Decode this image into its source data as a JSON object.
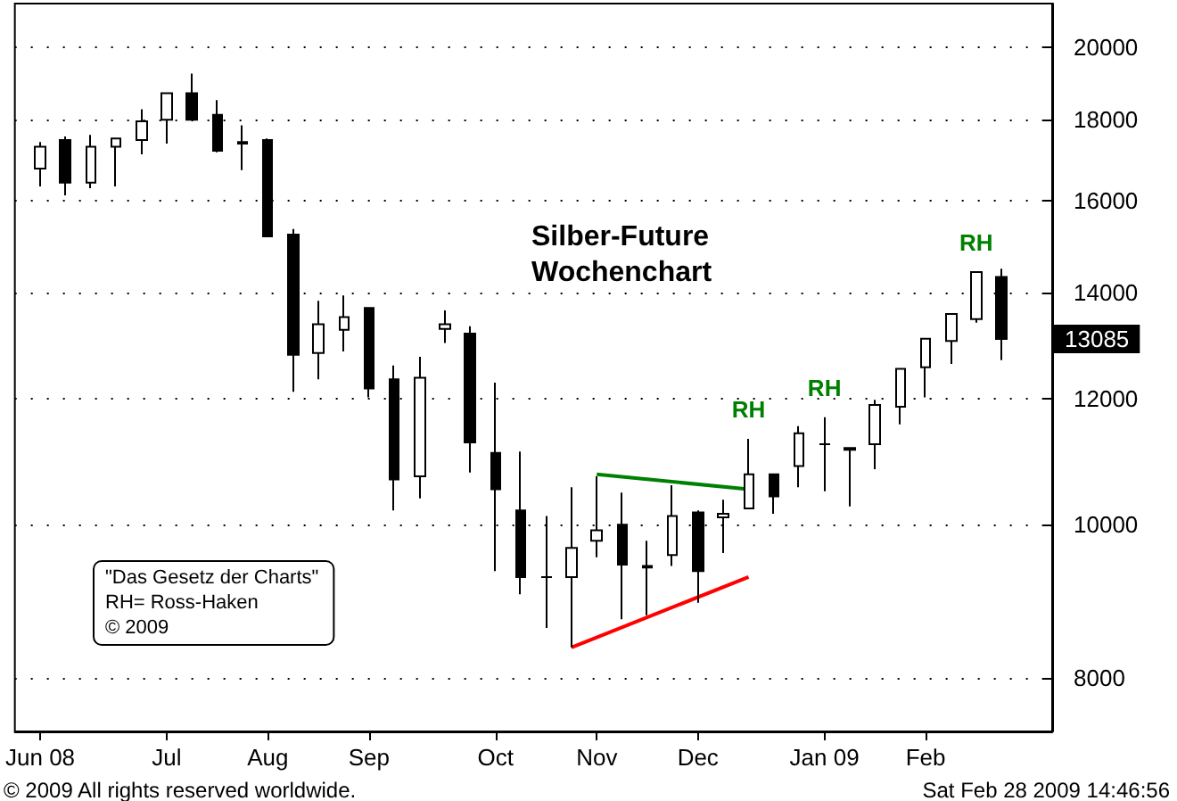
{
  "chart_data": {
    "type": "candlestick",
    "title": "Silber-Future",
    "subtitle": "Wochenchart",
    "color": "#000000",
    "x": [
      "2008-06-02",
      "2008-06-09",
      "2008-06-16",
      "2008-06-23",
      "2008-06-30",
      "2008-07-07",
      "2008-07-14",
      "2008-07-21",
      "2008-07-28",
      "2008-08-04",
      "2008-08-11",
      "2008-08-18",
      "2008-08-25",
      "2008-09-01",
      "2008-09-08",
      "2008-09-15",
      "2008-09-22",
      "2008-09-29",
      "2008-10-06",
      "2008-10-13",
      "2008-10-20",
      "2008-10-27",
      "2008-11-03",
      "2008-11-10",
      "2008-11-17",
      "2008-11-24",
      "2008-12-01",
      "2008-12-08",
      "2008-12-15",
      "2008-12-22",
      "2008-12-29",
      "2009-01-05",
      "2009-01-12",
      "2009-01-19",
      "2009-01-26",
      "2009-02-02",
      "2009-02-09",
      "2009-02-16",
      "2009-02-23"
    ],
    "ohlc": [
      [
        16760,
        17420,
        16330,
        17300
      ],
      [
        17470,
        17560,
        16120,
        16420
      ],
      [
        16420,
        17600,
        16290,
        17300
      ],
      [
        17300,
        17510,
        16330,
        17510
      ],
      [
        17470,
        18270,
        17110,
        17950
      ],
      [
        17990,
        18700,
        17380,
        18700
      ],
      [
        18700,
        19240,
        17990,
        17990
      ],
      [
        18120,
        18510,
        17160,
        17200
      ],
      [
        17380,
        17850,
        16720,
        17420
      ],
      [
        17470,
        17510,
        15190,
        15190
      ],
      [
        15230,
        15350,
        12120,
        12790
      ],
      [
        12820,
        13830,
        12340,
        13370
      ],
      [
        13260,
        13940,
        12850,
        13510
      ],
      [
        13690,
        13690,
        12020,
        12180
      ],
      [
        12340,
        12590,
        10200,
        10670
      ],
      [
        10720,
        12750,
        10380,
        12370
      ],
      [
        13280,
        13640,
        13010,
        13370
      ],
      [
        13190,
        13330,
        10780,
        11260
      ],
      [
        11090,
        12280,
        9340,
        10520
      ],
      [
        10200,
        11110,
        9030,
        9260
      ],
      [
        9260,
        10120,
        8600,
        9260
      ],
      [
        9260,
        10550,
        8360,
        9660
      ],
      [
        9760,
        10720,
        9530,
        9910
      ],
      [
        9990,
        10470,
        8710,
        9430
      ],
      [
        9390,
        9760,
        8760,
        9410
      ],
      [
        9560,
        10580,
        9410,
        10120
      ],
      [
        10170,
        10200,
        8920,
        9340
      ],
      [
        10100,
        10360,
        9590,
        10150
      ],
      [
        10230,
        11320,
        10230,
        10750
      ],
      [
        10750,
        10750,
        10150,
        10410
      ],
      [
        10880,
        11530,
        10550,
        11410
      ],
      [
        11230,
        11680,
        10490,
        11230
      ],
      [
        11170,
        11170,
        10260,
        11140
      ],
      [
        11230,
        11980,
        10830,
        11890
      ],
      [
        11860,
        12530,
        11560,
        12530
      ],
      [
        12560,
        13090,
        12020,
        13090
      ],
      [
        13050,
        13570,
        12620,
        13570
      ],
      [
        13470,
        14420,
        13400,
        14420
      ],
      [
        14320,
        14490,
        12690,
        13085
      ]
    ],
    "series": [
      {
        "type": "line",
        "color": "#008000",
        "x": [
          "2008-11-03",
          "2008-12-15"
        ],
        "values": [
          10750,
          10520
        ]
      },
      {
        "type": "line",
        "color": "#ff0000",
        "x": [
          "2008-10-27",
          "2008-12-15"
        ],
        "values": [
          8360,
          9260
        ]
      }
    ],
    "xlim": [
      "2008-05-26",
      "2009-03-09"
    ],
    "xticks": [
      {
        "value": "2008-06-02",
        "label": "Jun 08"
      },
      {
        "value": "2008-07-07",
        "label": "Jul"
      },
      {
        "value": "2008-08-04",
        "label": "Aug"
      },
      {
        "value": "2008-09-01",
        "label": "Sep"
      },
      {
        "value": "2008-10-06",
        "label": "Oct"
      },
      {
        "value": "2008-11-03",
        "label": "Nov"
      },
      {
        "value": "2008-12-01",
        "label": "Dec"
      },
      {
        "value": "2009-01-05",
        "label": "Jan 09"
      },
      {
        "value": "2009-02-02",
        "label": "Feb"
      }
    ],
    "ylim": [
      7400,
      21300
    ],
    "yticks": [
      8000,
      10000,
      12000,
      14000,
      16000,
      18000,
      20000
    ],
    "log": true,
    "grid": "y",
    "annotations": [
      "\"Das Gesetz der Charts\"\nRH= Ross-Haken\n© 2009",
      "© 2009 All rights reserved worldwide.",
      "Sat Feb 28 2009 14:46:56",
      {
        "text": "RH",
        "x": "2008-12-15",
        "y": 11320
      },
      {
        "text": "RH",
        "x": "2009-01-05",
        "y": 11680
      },
      {
        "text": "RH",
        "x": "2009-02-16",
        "y": 14420
      },
      "13085"
    ]
  }
}
